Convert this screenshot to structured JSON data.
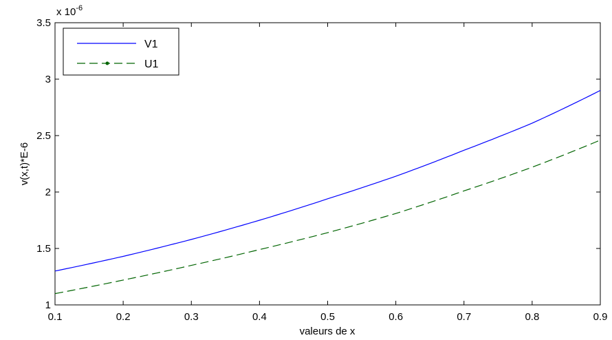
{
  "chart_data": {
    "type": "line",
    "title": "",
    "xlabel": "valeurs de x",
    "ylabel": "v(x,t)*E-6",
    "exponent_label": {
      "base": "x 10",
      "power": "-6"
    },
    "xlim": [
      0.1,
      0.9
    ],
    "ylim": [
      1.0,
      3.5
    ],
    "xticks": [
      0.1,
      0.2,
      0.3,
      0.4,
      0.5,
      0.6,
      0.7,
      0.8,
      0.9
    ],
    "xtick_labels": [
      "0.1",
      "0.2",
      "0.3",
      "0.4",
      "0.5",
      "0.6",
      "0.7",
      "0.8",
      "0.9"
    ],
    "yticks": [
      1.0,
      1.5,
      2.0,
      2.5,
      3.0,
      3.5
    ],
    "ytick_labels": [
      "1",
      "1.5",
      "2",
      "2.5",
      "3",
      "3.5"
    ],
    "grid": false,
    "legend_position": "top-left",
    "x": [
      0.1,
      0.2,
      0.3,
      0.4,
      0.5,
      0.6,
      0.7,
      0.8,
      0.9
    ],
    "series": [
      {
        "name": "V1",
        "color": "#0000ff",
        "style": "solid",
        "values": [
          1.3,
          1.43,
          1.58,
          1.75,
          1.94,
          2.14,
          2.37,
          2.61,
          2.9
        ]
      },
      {
        "name": "U1",
        "color": "#006400",
        "style": "dashed-dot-marker",
        "values": [
          1.1,
          1.22,
          1.35,
          1.49,
          1.64,
          1.81,
          2.01,
          2.22,
          2.46
        ]
      }
    ]
  }
}
